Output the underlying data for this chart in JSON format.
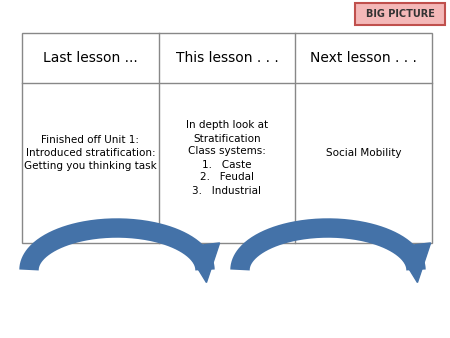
{
  "bg_color": "#ffffff",
  "big_picture_text": "BIG PICTURE",
  "big_picture_bg": "#f4b8b8",
  "big_picture_border": "#c0504d",
  "table_headers": [
    "Last lesson ...",
    "This lesson . . .",
    "Next lesson . . ."
  ],
  "col1_content": "Finished off Unit 1:\nIntroduced stratification:\nGetting you thinking task",
  "col2_lines": [
    "In depth look at",
    "Stratification",
    "Class systems:",
    "1.   Caste",
    "2.   Feudal",
    "3.   Industrial"
  ],
  "col3_content": "Social Mobility",
  "arrow_color": "#4472a8",
  "arrow_color_dark": "#2e5f8a",
  "font_size_header": 10,
  "font_size_body": 7.5
}
